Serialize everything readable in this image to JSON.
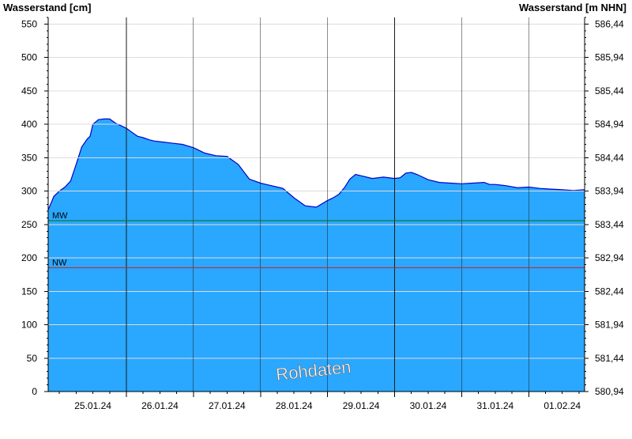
{
  "chart_data": {
    "type": "area",
    "title": "",
    "ylabel_left": "Wasserstand [cm]",
    "ylabel_right": "Wasserstand [m NHN]",
    "ylim": [
      0,
      560
    ],
    "yticks_left": [
      0,
      50,
      100,
      150,
      200,
      250,
      300,
      350,
      400,
      450,
      500,
      550
    ],
    "yticks_right": [
      "580,94",
      "581,44",
      "581,94",
      "582,44",
      "582,94",
      "583,44",
      "583,94",
      "584,44",
      "584,94",
      "585,44",
      "585,94",
      "586,44"
    ],
    "xlim": [
      "24.01.24 20:00",
      "01.02.24 20:00"
    ],
    "x_major_ticks": [
      "25.01.24 12:00",
      "26.01.24 12:00",
      "27.01.24 12:00",
      "28.01.24 12:00",
      "29.01.24 12:00",
      "30.01.24 12:00",
      "31.01.24 12:00",
      "01.02.24 12:00"
    ],
    "x_tick_labels": [
      "25.01.24",
      "26.01.24",
      "27.01.24",
      "28.01.24",
      "29.01.24",
      "30.01.24",
      "31.01.24",
      "01.02.24"
    ],
    "grid": true,
    "reference_lines": [
      {
        "label": "MW",
        "value": 256,
        "color": "#007700"
      },
      {
        "label": "NW",
        "value": 185,
        "color": "#cc2222"
      }
    ],
    "watermark": "Rohdaten",
    "series": [
      {
        "x": [
          "24.01.24 20:00",
          "24.01.24 22:00",
          "25.01.24 00:00",
          "25.01.24 02:00",
          "25.01.24 04:00",
          "25.01.24 06:00",
          "25.01.24 08:00",
          "25.01.24 10:00",
          "25.01.24 11:00",
          "25.01.24 12:00",
          "25.01.24 14:00",
          "25.01.24 16:00",
          "25.01.24 18:00",
          "25.01.24 20:00",
          "25.01.24 22:00",
          "26.01.24 00:00",
          "26.01.24 02:00",
          "26.01.24 04:00",
          "26.01.24 06:00",
          "26.01.24 08:00",
          "26.01.24 10:00",
          "26.01.24 12:00",
          "26.01.24 16:00",
          "26.01.24 20:00",
          "27.01.24 00:00",
          "27.01.24 04:00",
          "27.01.24 08:00",
          "27.01.24 12:00",
          "27.01.24 16:00",
          "27.01.24 20:00",
          "28.01.24 00:00",
          "28.01.24 02:00",
          "28.01.24 04:00",
          "28.01.24 06:00",
          "28.01.24 08:00",
          "28.01.24 12:00",
          "28.01.24 16:00",
          "28.01.24 20:00",
          "29.01.24 00:00",
          "29.01.24 02:00",
          "29.01.24 04:00",
          "29.01.24 06:00",
          "29.01.24 08:00",
          "29.01.24 10:00",
          "29.01.24 12:00",
          "29.01.24 16:00",
          "29.01.24 20:00",
          "30.01.24 00:00",
          "30.01.24 02:00",
          "30.01.24 04:00",
          "30.01.24 06:00",
          "30.01.24 08:00",
          "30.01.24 12:00",
          "30.01.24 16:00",
          "30.01.24 20:00",
          "31.01.24 00:00",
          "31.01.24 04:00",
          "31.01.24 08:00",
          "31.01.24 10:00",
          "31.01.24 12:00",
          "31.01.24 16:00",
          "31.01.24 20:00",
          "01.02.24 00:00",
          "01.02.24 04:00",
          "01.02.24 08:00",
          "01.02.24 12:00",
          "01.02.24 16:00",
          "01.02.24 20:00"
        ],
        "y": [
          272,
          292,
          300,
          306,
          315,
          340,
          366,
          378,
          382,
          400,
          407,
          408,
          408,
          402,
          398,
          394,
          388,
          382,
          380,
          377,
          375,
          374,
          372,
          370,
          365,
          357,
          353,
          352,
          340,
          318,
          312,
          310,
          308,
          306,
          304,
          290,
          278,
          276,
          286,
          290,
          295,
          305,
          318,
          325,
          323,
          319,
          321,
          319,
          320,
          327,
          328,
          325,
          317,
          313,
          312,
          311,
          312,
          313,
          310,
          310,
          308,
          305,
          306,
          304,
          303,
          302,
          301,
          302
        ]
      }
    ]
  }
}
